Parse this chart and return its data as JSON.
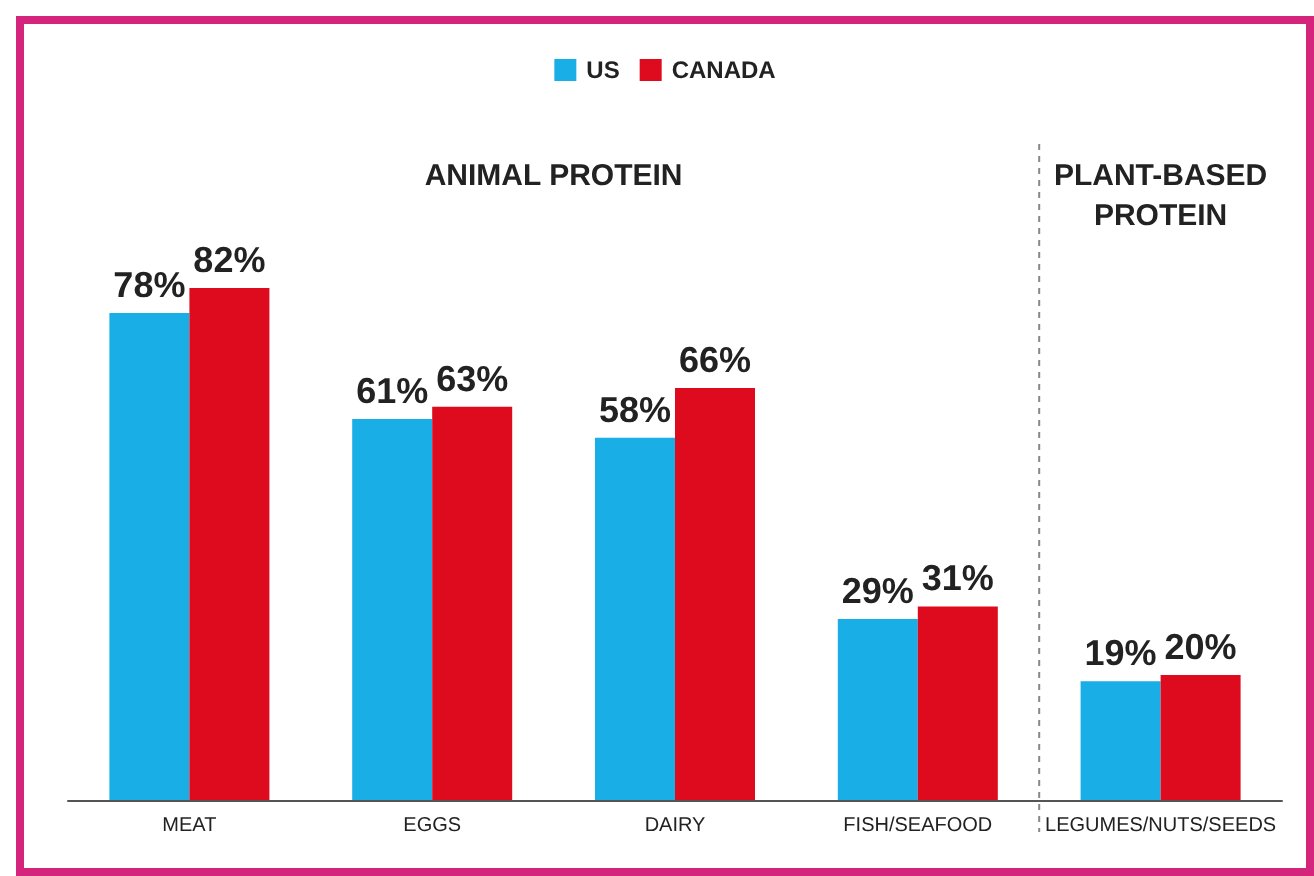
{
  "chart_data": {
    "type": "bar",
    "categories": [
      "MEAT",
      "EGGS",
      "DAIRY",
      "FISH/SEAFOOD",
      "LEGUMES/NUTS/SEEDS"
    ],
    "series": [
      {
        "name": "US",
        "color": "#19aee6",
        "values": [
          78,
          61,
          58,
          29,
          19
        ],
        "value_labels": [
          "78%",
          "61%",
          "58%",
          "29%",
          "19%"
        ]
      },
      {
        "name": "CANADA",
        "color": "#de0a1e",
        "values": [
          82,
          63,
          66,
          31,
          20
        ],
        "value_labels": [
          "82%",
          "63%",
          "66%",
          "31%",
          "20%"
        ]
      }
    ],
    "annotations": [
      "ANIMAL PROTEIN",
      "PLANT-BASED\nPROTEIN"
    ],
    "legend": "top"
  }
}
